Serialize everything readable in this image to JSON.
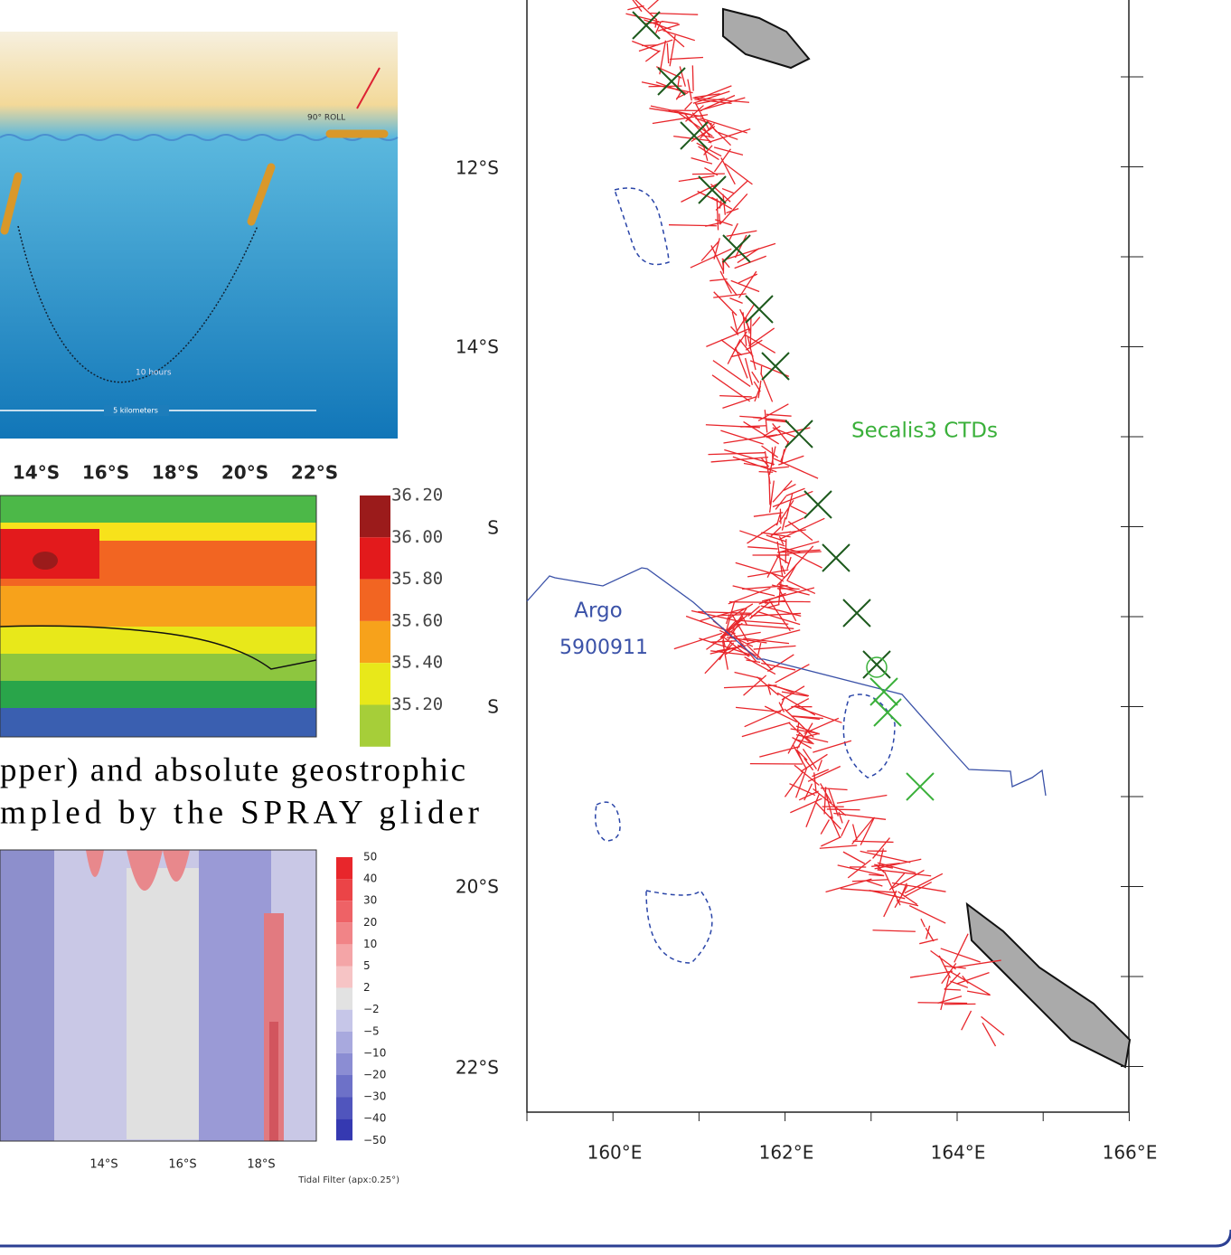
{
  "glider_figure": {
    "roll_label": "90° ROLL",
    "duration_label": "10 hours",
    "distance_label": "5 kilometers"
  },
  "salinity_figure": {
    "top_axis_labels": [
      "14°S",
      "16°S",
      "18°S",
      "20°S",
      "22°S"
    ],
    "colorbar_labels": [
      "36.20",
      "36.00",
      "35.80",
      "35.60",
      "35.40",
      "35.20"
    ]
  },
  "caption": {
    "lines": [
      "pper) and absolute geostrophic",
      "mpled by the SPRAY glider"
    ]
  },
  "velocity_figure": {
    "colorbar_labels": [
      "50",
      "40",
      "30",
      "20",
      "10",
      "5",
      "2",
      "−2",
      "−5",
      "−10",
      "−20",
      "−30",
      "−40",
      "−50"
    ],
    "x_labels": [
      "14°S",
      "16°S",
      "18°S"
    ],
    "note": "Tidal Filter (apx:0.25°)"
  },
  "map": {
    "y_labels": [
      "12°S",
      "14°S",
      "S",
      "S",
      "20°S",
      "22°S"
    ],
    "x_labels": [
      "160°E",
      "162°E",
      "164°E",
      "166°E"
    ],
    "ctd_label": "Secalis3 CTDs",
    "argo_label": [
      "Argo",
      "5900911"
    ]
  }
}
